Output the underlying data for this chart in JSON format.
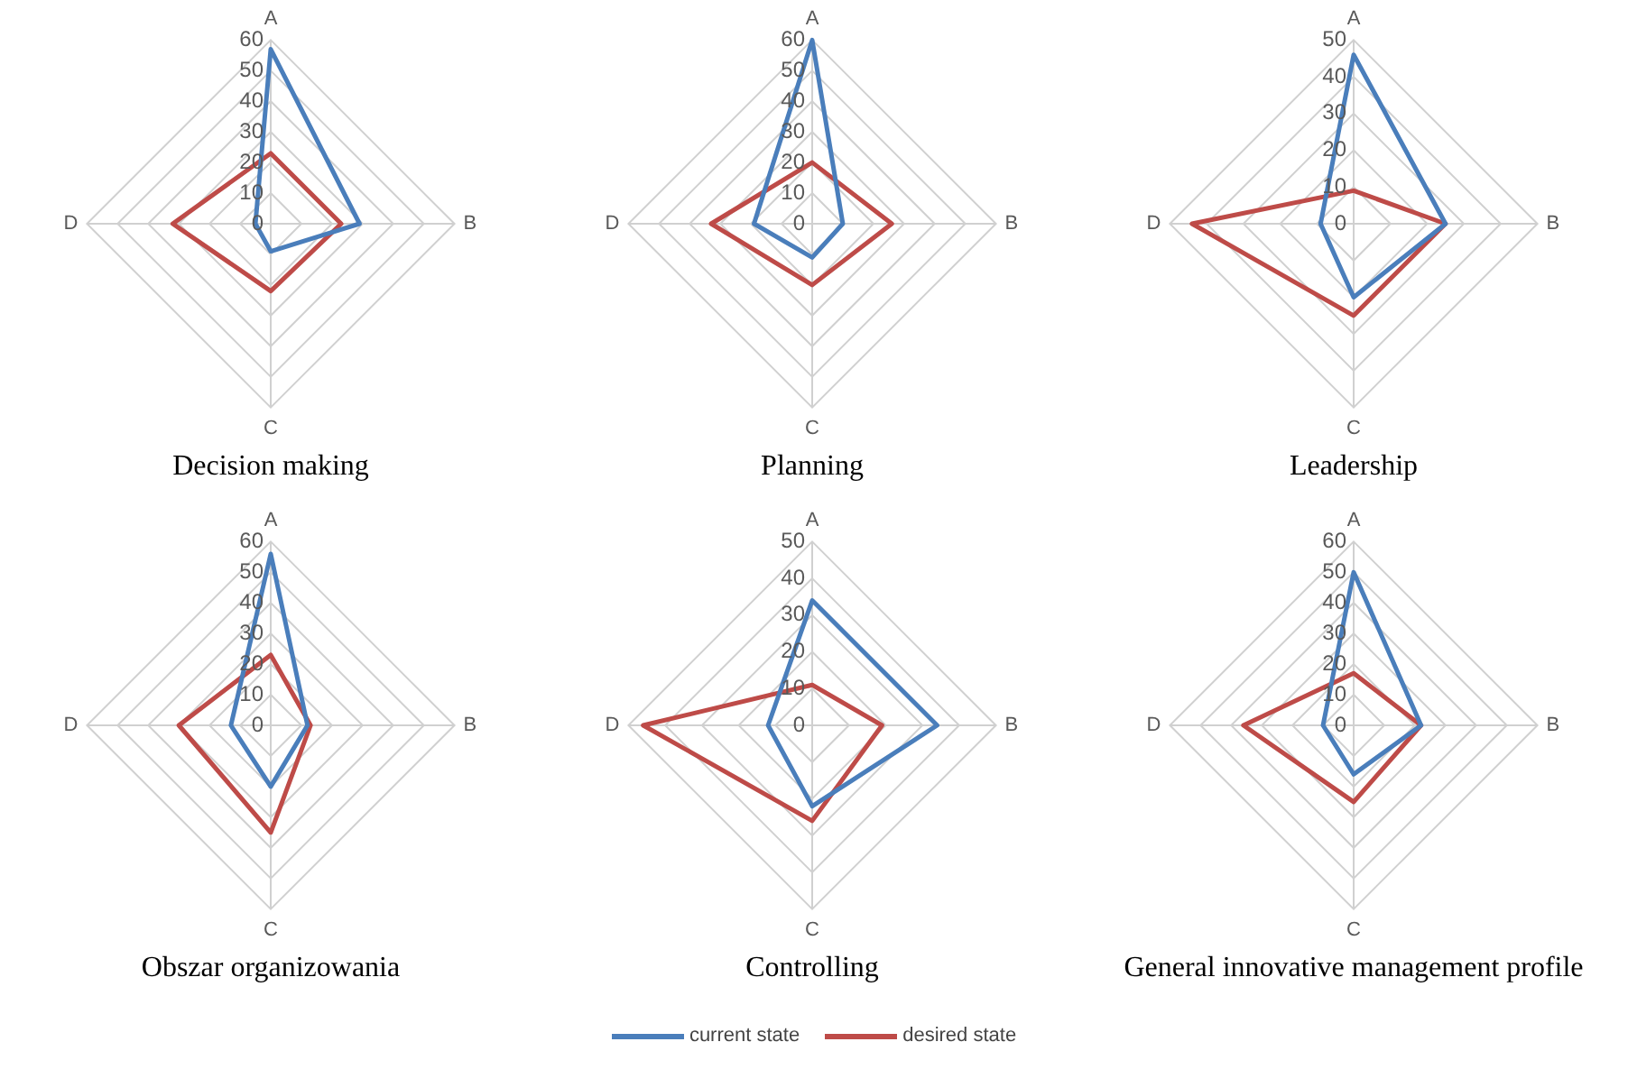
{
  "chart_data": [
    {
      "type": "radar",
      "title": "Decision making",
      "categories": [
        "A",
        "B",
        "C",
        "D"
      ],
      "ylim": [
        0,
        60
      ],
      "yticks": [
        0,
        10,
        20,
        30,
        40,
        50,
        60
      ],
      "grid": true,
      "series": [
        {
          "color": "#4a7ebb",
          "values": [
            57,
            29,
            9,
            5
          ]
        },
        {
          "color": "#be4b48",
          "values": [
            23,
            23,
            22,
            32
          ]
        }
      ]
    },
    {
      "type": "radar",
      "title": "Planning",
      "categories": [
        "A",
        "B",
        "C",
        "D"
      ],
      "ylim": [
        0,
        60
      ],
      "yticks": [
        0,
        10,
        20,
        30,
        40,
        50,
        60
      ],
      "grid": true,
      "series": [
        {
          "color": "#4a7ebb",
          "values": [
            60,
            10,
            11,
            19
          ]
        },
        {
          "color": "#be4b48",
          "values": [
            20,
            26,
            20,
            33
          ]
        }
      ]
    },
    {
      "type": "radar",
      "title": "Leadership",
      "categories": [
        "A",
        "B",
        "C",
        "D"
      ],
      "ylim": [
        0,
        50
      ],
      "yticks": [
        0,
        10,
        20,
        30,
        40,
        50
      ],
      "grid": true,
      "series": [
        {
          "color": "#4a7ebb",
          "values": [
            46,
            25,
            20,
            9
          ]
        },
        {
          "color": "#be4b48",
          "values": [
            9,
            25,
            25,
            44
          ]
        }
      ]
    },
    {
      "type": "radar",
      "title": "Obszar organizowania",
      "categories": [
        "A",
        "B",
        "C",
        "D"
      ],
      "ylim": [
        0,
        60
      ],
      "yticks": [
        0,
        10,
        20,
        30,
        40,
        50,
        60
      ],
      "grid": true,
      "series": [
        {
          "color": "#4a7ebb",
          "values": [
            56,
            12,
            20,
            13
          ]
        },
        {
          "color": "#be4b48",
          "values": [
            23,
            13,
            35,
            30
          ]
        }
      ]
    },
    {
      "type": "radar",
      "title": "Controlling",
      "categories": [
        "A",
        "B",
        "C",
        "D"
      ],
      "ylim": [
        0,
        50
      ],
      "yticks": [
        0,
        10,
        20,
        30,
        40,
        50
      ],
      "grid": true,
      "legend": "bottom",
      "series": [
        {
          "name": "current state",
          "color": "#4a7ebb",
          "values": [
            34,
            34,
            22,
            12
          ]
        },
        {
          "name": "desired state",
          "color": "#be4b48",
          "values": [
            11,
            19,
            26,
            46
          ]
        }
      ]
    },
    {
      "type": "radar",
      "title": "General innovative management profile",
      "categories": [
        "A",
        "B",
        "C",
        "D"
      ],
      "ylim": [
        0,
        60
      ],
      "yticks": [
        0,
        10,
        20,
        30,
        40,
        50,
        60
      ],
      "grid": true,
      "series": [
        {
          "color": "#4a7ebb",
          "values": [
            50,
            22,
            16,
            10
          ]
        },
        {
          "color": "#be4b48",
          "values": [
            17,
            22,
            25,
            36
          ]
        }
      ]
    }
  ]
}
